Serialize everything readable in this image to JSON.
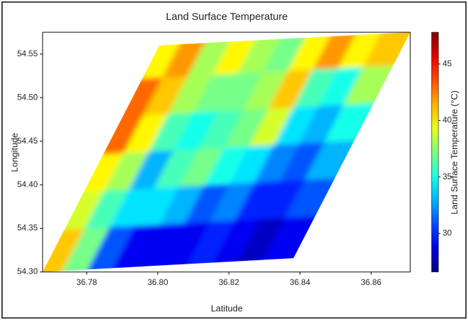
{
  "chart_data": {
    "type": "heatmap",
    "title": "Land Surface Temperature",
    "x_label": "Latitude",
    "y_label": "Longitude",
    "colorbar_label": "Land Surface Temperature (°C)",
    "colormap": "jet",
    "xlim": [
      36.7676,
      36.871
    ],
    "xticks": [
      36.78,
      {
        "value": 36.8,
        "label": "36.80"
      },
      36.82,
      36.84,
      36.86
    ],
    "ylim": [
      54.3,
      54.575
    ],
    "yticks": [
      {
        "value": 54.3,
        "label": "54.30"
      },
      54.35,
      {
        "value": 54.4,
        "label": "54.40"
      },
      54.45,
      {
        "value": 54.5,
        "label": "54.50"
      },
      54.55
    ],
    "clim": [
      26.6,
      47.8
    ],
    "cticks": [
      30,
      35,
      40,
      45
    ],
    "z": [
      [
        40,
        42,
        38,
        40,
        38,
        37,
        40,
        42,
        40,
        41
      ],
      [
        43,
        41,
        38,
        37,
        37,
        38,
        41,
        36,
        35,
        38
      ],
      [
        43,
        40,
        36,
        35,
        36,
        37,
        39,
        34,
        33,
        35
      ],
      [
        40,
        38,
        33,
        36,
        37,
        35,
        34,
        32,
        31,
        33
      ],
      [
        39,
        36,
        34,
        34,
        33,
        31,
        32,
        30,
        30,
        31
      ],
      [
        41,
        37,
        31,
        29,
        29,
        29,
        30,
        29,
        28,
        29
      ]
    ]
  }
}
